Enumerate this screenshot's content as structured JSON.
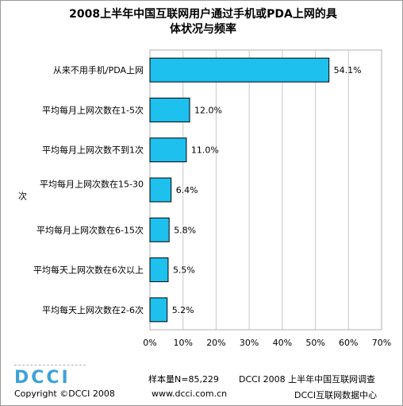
{
  "chart_data": {
    "type": "bar",
    "orientation": "horizontal",
    "title_line1": "2008上半年中国互联网用户通过手机或PDA上网的具",
    "title_line2": "体状况与频率",
    "categories": [
      [
        "从来不用手机/PDA上网"
      ],
      [
        "平均每月上网次数在1-5次"
      ],
      [
        "平均每月上网次数不到1次"
      ],
      [
        "平均每月上网次数在15-30",
        "次"
      ],
      [
        "平均每月上网次数在6-15次"
      ],
      [
        "平均每天上网次数在6次以上"
      ],
      [
        "平均每天上网次数在2-6次"
      ]
    ],
    "values": [
      54.1,
      12.0,
      11.0,
      6.4,
      5.8,
      5.5,
      5.2
    ],
    "value_labels": [
      "54.1%",
      "12.0%",
      "11.0%",
      "6.4%",
      "5.8%",
      "5.5%",
      "5.2%"
    ],
    "xlim": [
      0,
      70
    ],
    "xticks": [
      "0%",
      "10%",
      "20%",
      "30%",
      "40%",
      "50%",
      "60%",
      "70%"
    ],
    "grid": true,
    "colors": {
      "bar": "#1ec0ee",
      "bar_border": "#000000",
      "grid": "#c8c8c8"
    }
  },
  "footer": {
    "logo": "DCCI",
    "copyright": "Copyright ©DCCI 2008",
    "sample": "样本量N=85,229",
    "survey": "DCCI 2008 上半年中国互联网调查",
    "website": "www.dcci.com.cn",
    "org": "DCCI互联网数据中心"
  }
}
